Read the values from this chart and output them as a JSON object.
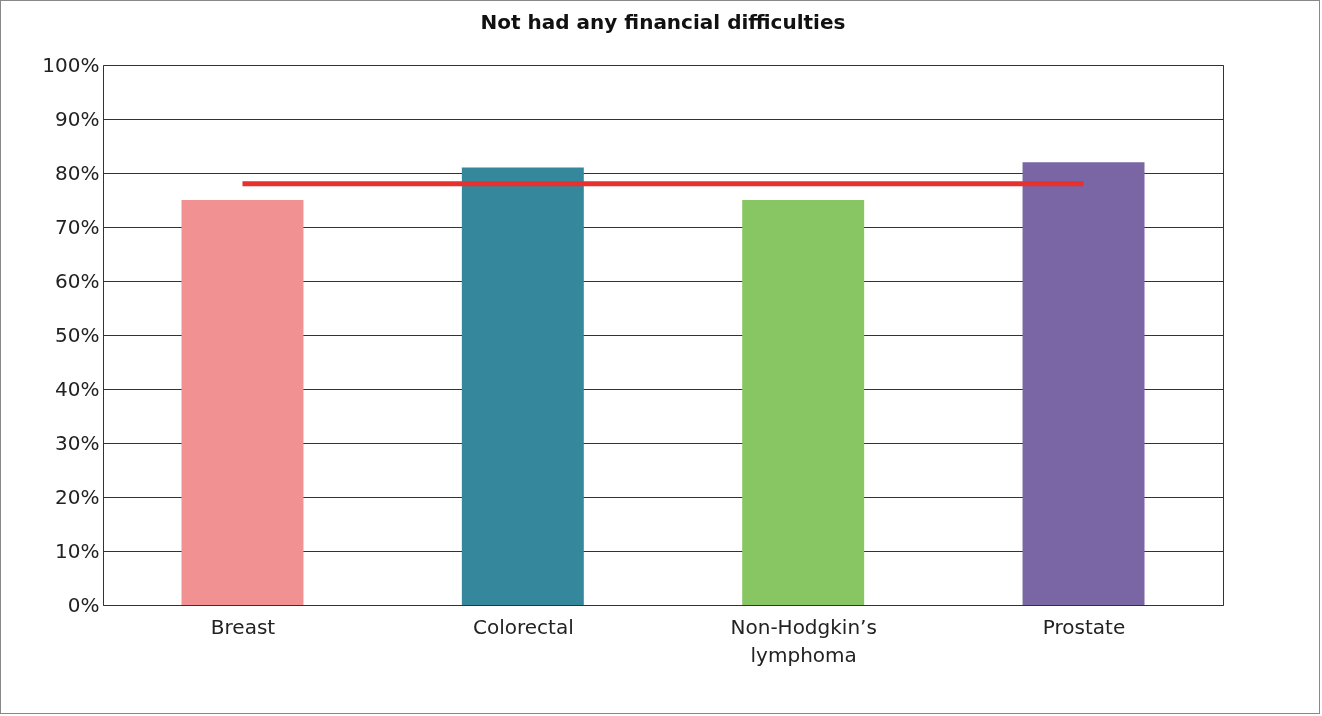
{
  "chart_data": {
    "type": "bar",
    "title": "Not had any financial difficulties",
    "categories": [
      "Breast",
      "Colorectal",
      "Non-Hodgkin’s lymphoma",
      "Prostate"
    ],
    "series": [
      {
        "colors": [
          "#f29191",
          "#35879b",
          "#88c663",
          "#7a65a5"
        ],
        "values": [
          75,
          81,
          75,
          82
        ]
      },
      {
        "type": "line",
        "color": "#e8312f",
        "values": [
          78,
          78,
          78,
          78
        ]
      }
    ],
    "ylim": [
      0,
      100
    ],
    "yticks": [
      {
        "value": 0,
        "label": "0%"
      },
      {
        "value": 10,
        "label": "10%"
      },
      {
        "value": 20,
        "label": "20%"
      },
      {
        "value": 30,
        "label": "30%"
      },
      {
        "value": 40,
        "label": "40%"
      },
      {
        "value": 50,
        "label": "50%"
      },
      {
        "value": 60,
        "label": "60%"
      },
      {
        "value": 70,
        "label": "70%"
      },
      {
        "value": 80,
        "label": "80%"
      },
      {
        "value": 90,
        "label": "90%"
      },
      {
        "value": 100,
        "label": "100%"
      }
    ],
    "grid": "y"
  }
}
